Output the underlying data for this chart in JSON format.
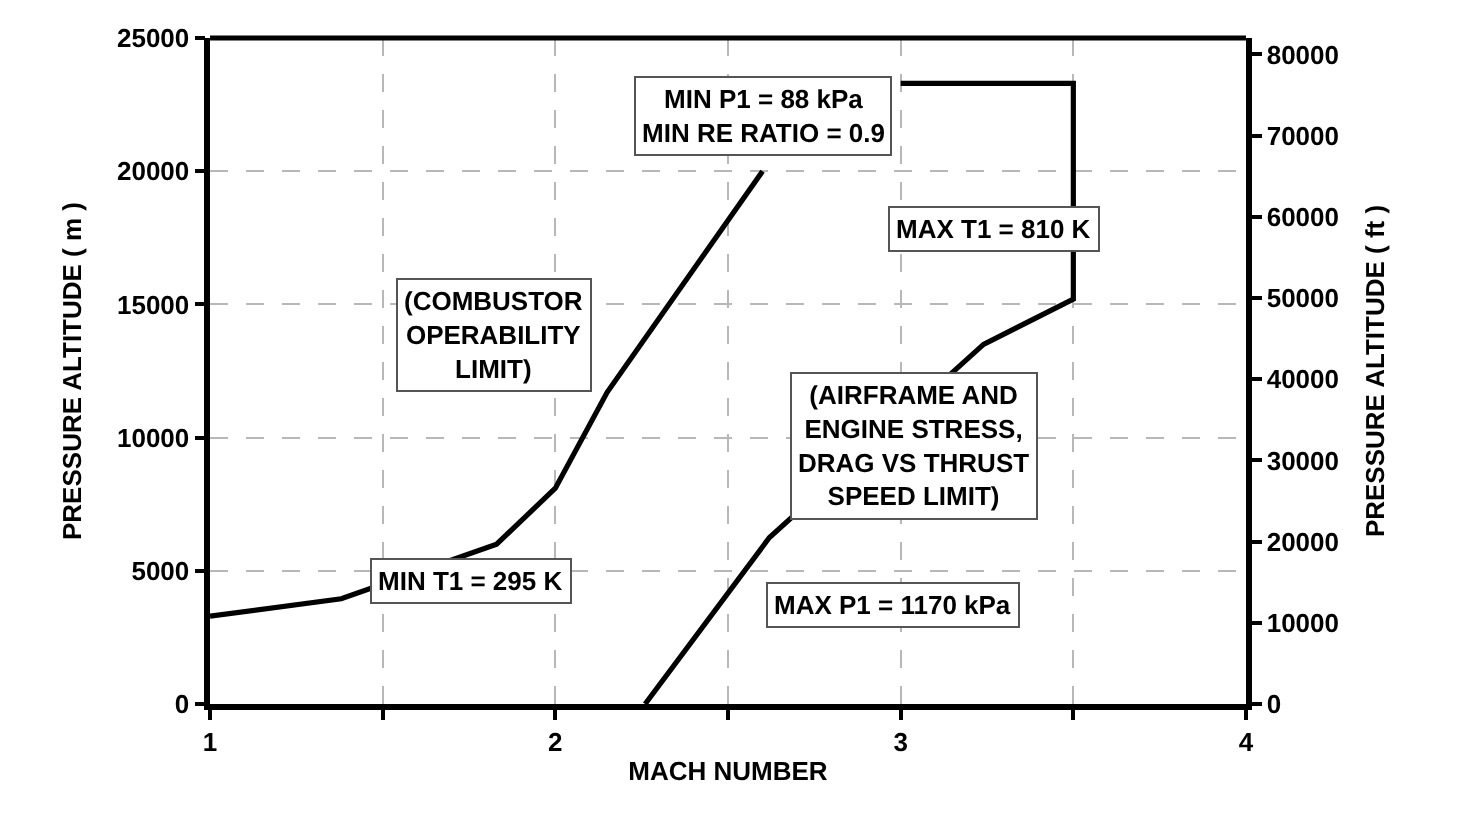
{
  "chart_data": {
    "type": "line",
    "xlabel": "MACH NUMBER",
    "ylabel": "PRESSURE ALTITUDE ( m )",
    "y2label": "PRESSURE ALTITUDE ( ft )",
    "series": [
      {
        "color": "#000000",
        "x": [
          1,
          1.38,
          1.83,
          2.0,
          2.15,
          2.6,
          2.78,
          3.0,
          3.5,
          3.5,
          3.24,
          2.62,
          2.26
        ],
        "values": [
          3300,
          3950,
          6000,
          8100,
          11700,
          20000,
          null,
          23300,
          23300,
          15200,
          13500,
          6250,
          0
        ]
      }
    ],
    "xlim": [
      1,
      4
    ],
    "xticks": [
      1,
      {
        "value": 1.5,
        "label": null
      },
      2,
      {
        "value": 2.5,
        "label": null
      },
      3,
      {
        "value": 3.5,
        "label": null
      },
      4
    ],
    "ylim": [
      0,
      25000
    ],
    "yticks": [
      0,
      5000,
      10000,
      15000,
      20000,
      25000
    ],
    "y2lim": [
      0,
      82021
    ],
    "y2ticks": [
      0,
      10000,
      20000,
      30000,
      40000,
      50000,
      60000,
      70000,
      80000
    ],
    "grid": true,
    "marker": "none",
    "line_style": "solid",
    "annotations": [
      "MIN P1 = 88 kPa\nMIN RE RATIO = 0.9",
      "(COMBUSTOR\nOPERABILITY\nLIMIT)",
      "MIN T1 = 295 K",
      "MAX T1 = 810 K",
      "(AIRFRAME AND\nENGINE STRESS,\nDRAG VS THRUST\nSPEED LIMIT)",
      "MAX P1 = 1170 kPa"
    ]
  }
}
